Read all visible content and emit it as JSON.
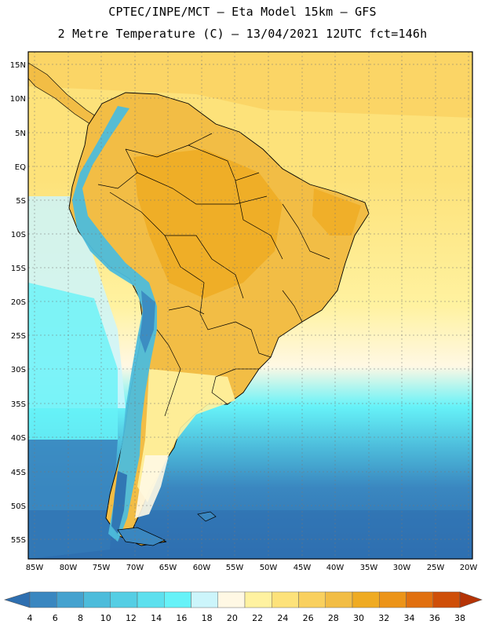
{
  "title_line1": "CPTEC/INPE/MCT –  Eta Model 15km – GFS",
  "title_line2": "2 Metre Temperature (C) – 13/04/2021 12UTC fct=146h",
  "lat_labels": [
    "15N",
    "10N",
    "5N",
    "EQ",
    "5S",
    "10S",
    "15S",
    "20S",
    "25S",
    "30S",
    "35S",
    "40S",
    "45S",
    "50S",
    "55S"
  ],
  "lon_labels": [
    "85W",
    "80W",
    "75W",
    "70W",
    "65W",
    "60W",
    "55W",
    "50W",
    "45W",
    "40W",
    "35W",
    "30W",
    "25W",
    "20W"
  ],
  "colorbar": {
    "labels": [
      "4",
      "6",
      "8",
      "10",
      "12",
      "14",
      "16",
      "18",
      "20",
      "22",
      "24",
      "26",
      "28",
      "30",
      "32",
      "34",
      "36",
      "38"
    ],
    "colors": [
      "#2e6fb0",
      "#3a87c0",
      "#45a2cf",
      "#4dbcdb",
      "#55cee4",
      "#5de0ee",
      "#66f2f8",
      "#ccf5fb",
      "#fff8e4",
      "#fff2a0",
      "#fde27a",
      "#f9d05e",
      "#f2bd45",
      "#efab22",
      "#ec9418",
      "#e1700f",
      "#cf4f08",
      "#b53305"
    ]
  },
  "map_colors": {
    "ocean_deep": "#2e6fb0",
    "ocean_mid": "#3a87c0",
    "ocean_light": "#4dbcdb",
    "ocean_cyan": "#66f2f8",
    "ocean_pale": "#ccf5fb",
    "ocean_warm": "#fde27a",
    "land_hot": "#efab22",
    "land_warm": "#f2bd45",
    "andes": "#4dbcdb",
    "patagonia": "#fff8e4"
  }
}
